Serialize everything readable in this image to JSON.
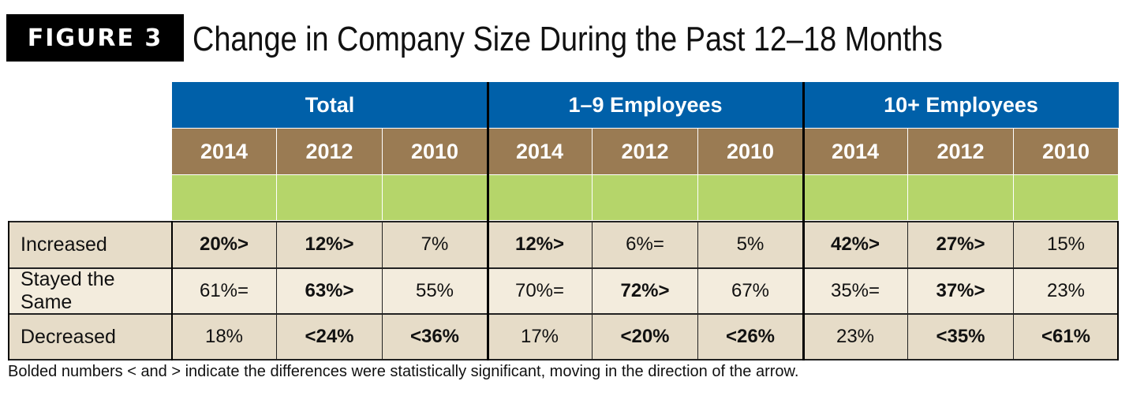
{
  "figure": {
    "badge": "FIGURE 3",
    "title": "Change in Company Size During the Past 12–18 Months"
  },
  "table": {
    "groups": [
      "Total",
      "1–9 Employees",
      "10+ Employees"
    ],
    "years": [
      "2014",
      "2012",
      "2010",
      "2014",
      "2012",
      "2010",
      "2014",
      "2012",
      "2010"
    ],
    "rows": [
      {
        "label": "Increased",
        "cells": [
          {
            "v": "20%>",
            "bold": true
          },
          {
            "v": "12%>",
            "bold": true
          },
          {
            "v": "7%",
            "bold": false
          },
          {
            "v": "12%>",
            "bold": true
          },
          {
            "v": "6%=",
            "bold": false
          },
          {
            "v": "5%",
            "bold": false
          },
          {
            "v": "42%>",
            "bold": true
          },
          {
            "v": "27%>",
            "bold": true
          },
          {
            "v": "15%",
            "bold": false
          }
        ]
      },
      {
        "label": "Stayed the Same",
        "cells": [
          {
            "v": "61%=",
            "bold": false
          },
          {
            "v": "63%>",
            "bold": true
          },
          {
            "v": "55%",
            "bold": false
          },
          {
            "v": "70%=",
            "bold": false
          },
          {
            "v": "72%>",
            "bold": true
          },
          {
            "v": "67%",
            "bold": false
          },
          {
            "v": "35%=",
            "bold": false
          },
          {
            "v": "37%>",
            "bold": true
          },
          {
            "v": "23%",
            "bold": false
          }
        ]
      },
      {
        "label": "Decreased",
        "cells": [
          {
            "v": "18%",
            "bold": false
          },
          {
            "v": "<24%",
            "bold": true
          },
          {
            "v": "<36%",
            "bold": true
          },
          {
            "v": "17%",
            "bold": false
          },
          {
            "v": "<20%",
            "bold": true
          },
          {
            "v": "<26%",
            "bold": true
          },
          {
            "v": "23%",
            "bold": false
          },
          {
            "v": "<35%",
            "bold": true
          },
          {
            "v": "<61%",
            "bold": true
          }
        ]
      }
    ]
  },
  "footnote": "Bolded numbers < and > indicate the differences were statistically significant, moving in the direction of the arrow.",
  "colors": {
    "header_blue": "#0060a9",
    "year_brown": "#9a7b53",
    "band_green": "#b5d56a",
    "row_tan": "#e6dcc8",
    "row_light": "#f3ecdd"
  }
}
